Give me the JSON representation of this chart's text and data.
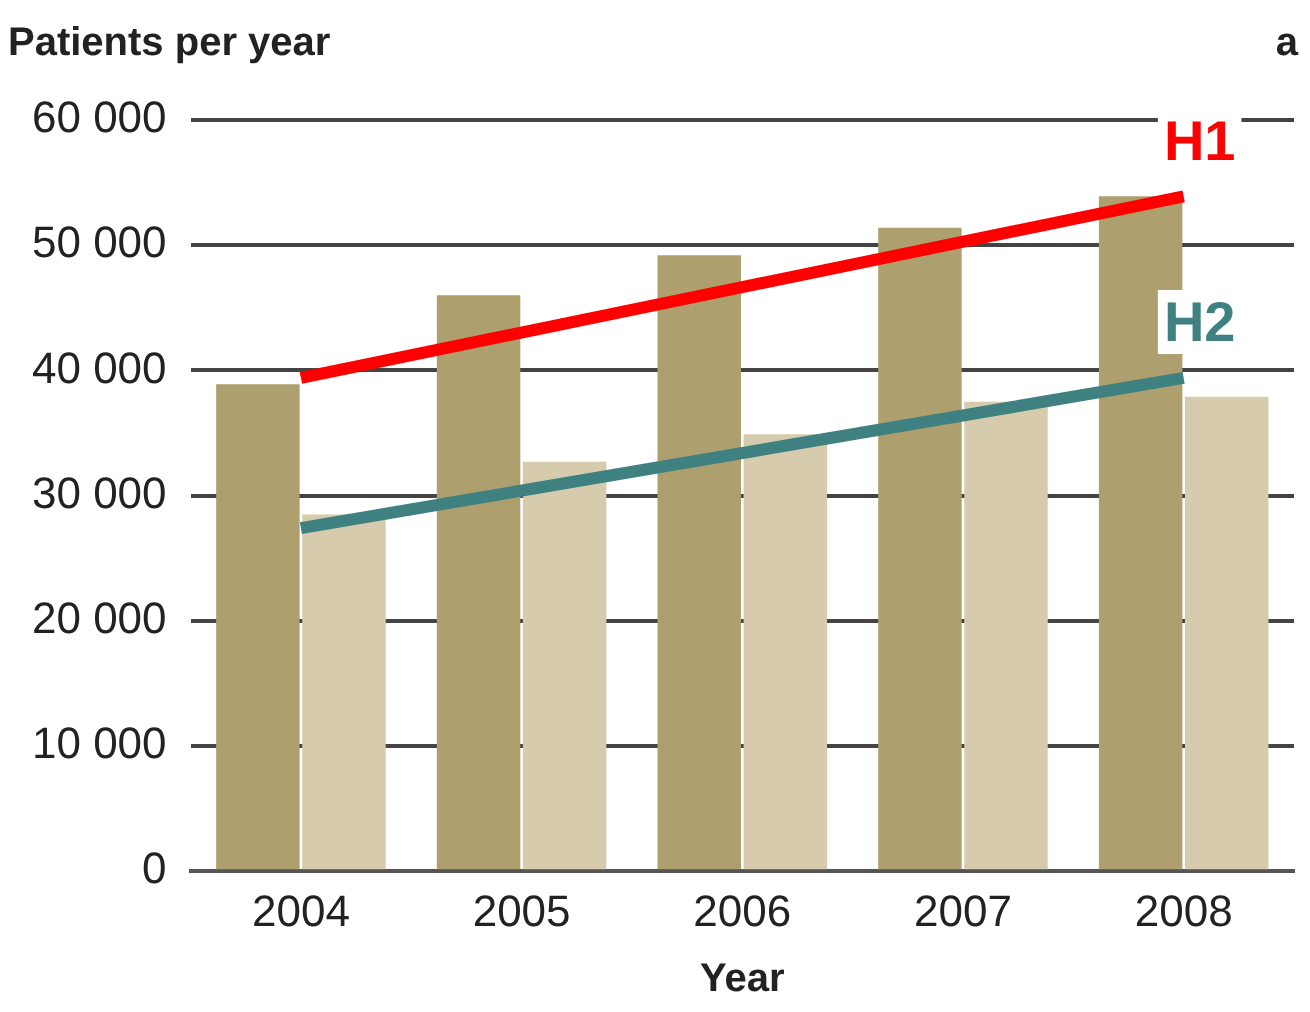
{
  "chart_data": {
    "type": "bar",
    "title": "Patients per year",
    "xlabel": "Year",
    "categories": [
      "2004",
      "2005",
      "2006",
      "2007",
      "2008"
    ],
    "series": [
      {
        "color": "#ada06e",
        "values": [
          38900,
          46000,
          49200,
          51400,
          53900
        ]
      },
      {
        "color": "#d6ccad",
        "values": [
          28500,
          32700,
          34900,
          37500,
          37900
        ]
      },
      {
        "name": "H1",
        "type": "line",
        "color": "#ff0000",
        "values": [
          39400,
          null,
          null,
          null,
          53900
        ]
      },
      {
        "name": "H2",
        "type": "line",
        "color": "#3f8080",
        "values": [
          27400,
          null,
          null,
          null,
          39400
        ]
      }
    ],
    "annotations": [
      "a"
    ],
    "ylim": [
      0,
      60000
    ],
    "yticks": [
      {
        "value": 0,
        "label": "0"
      },
      {
        "value": 10000,
        "label": "10 000"
      },
      {
        "value": 20000,
        "label": "20 000"
      },
      {
        "value": 30000,
        "label": "30 000"
      },
      {
        "value": 40000,
        "label": "40 000"
      },
      {
        "value": 50000,
        "label": "50 000"
      },
      {
        "value": 60000,
        "label": "60 000"
      }
    ],
    "grid": "y",
    "legend": false
  }
}
